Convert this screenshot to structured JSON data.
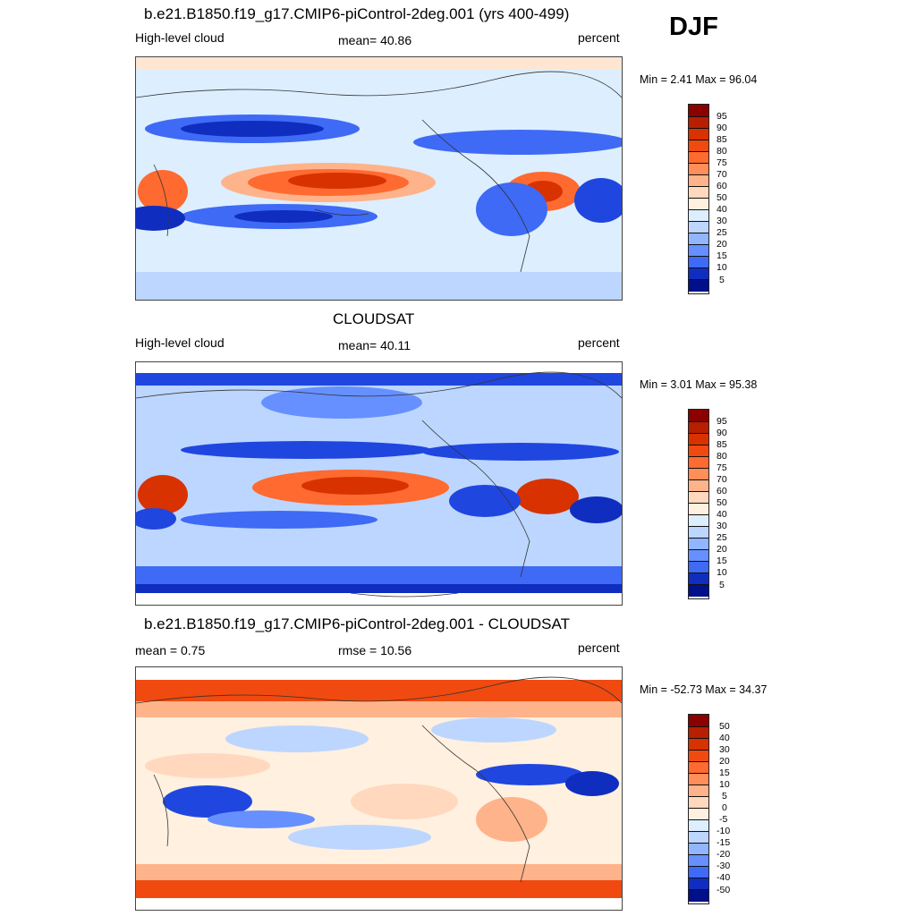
{
  "season": "DJF",
  "panels": [
    {
      "id": "model",
      "title": "b.e21.B1850.f19_g17.CMIP6-piControl-2deg.001 (yrs 400-499)",
      "left": "High-level cloud",
      "center": "mean=  40.86",
      "right": "percent",
      "minmax": "Min =   2.41 Max =  96.04",
      "levels": [
        "95",
        "90",
        "85",
        "80",
        "75",
        "70",
        "60",
        "50",
        "40",
        "30",
        "25",
        "20",
        "15",
        "10",
        "5"
      ]
    },
    {
      "id": "obs",
      "title": "CLOUDSAT",
      "left": "High-level cloud",
      "center": "mean=  40.11",
      "right": "percent",
      "minmax": "Min =   3.01 Max =  95.38",
      "levels": [
        "95",
        "90",
        "85",
        "80",
        "75",
        "70",
        "60",
        "50",
        "40",
        "30",
        "25",
        "20",
        "15",
        "10",
        "5"
      ]
    },
    {
      "id": "diff",
      "title": "b.e21.B1850.f19_g17.CMIP6-piControl-2deg.001 - CLOUDSAT",
      "left": "mean =   0.75",
      "center": "rmse =  10.56",
      "right": "percent",
      "minmax": "Min = -52.73 Max =  34.37",
      "levels": [
        "50",
        "40",
        "30",
        "20",
        "15",
        "10",
        "5",
        "0",
        "-5",
        "-10",
        "-15",
        "-20",
        "-30",
        "-40",
        "-50"
      ]
    }
  ],
  "colors": [
    "#8b0000",
    "#b81f00",
    "#d83200",
    "#f04a10",
    "#ff6a30",
    "#ff8e5a",
    "#ffb38a",
    "#ffd8bd",
    "#fff0e0",
    "#ddeeff",
    "#bcd6ff",
    "#92b5ff",
    "#6690ff",
    "#3f6af5",
    "#2046e0",
    "#0f2ec0",
    "#00108a"
  ]
}
